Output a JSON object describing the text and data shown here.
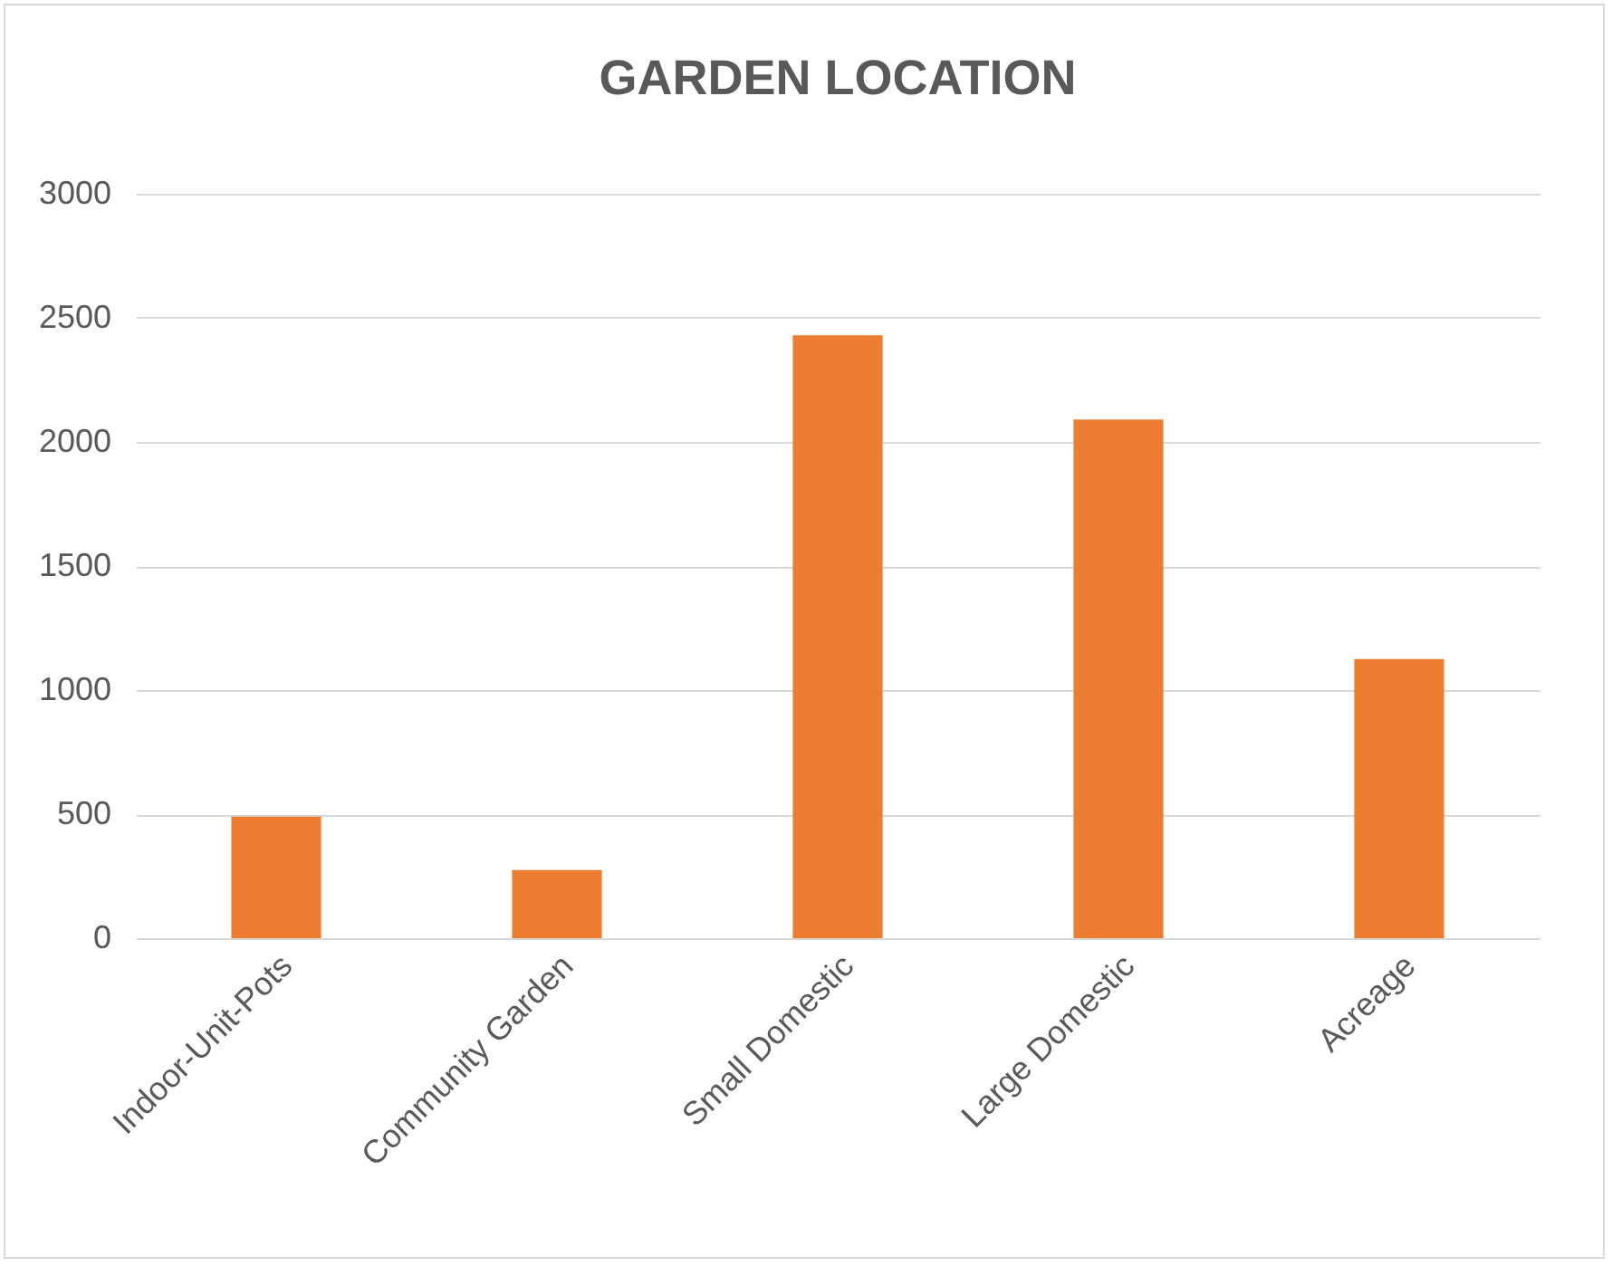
{
  "chart_data": {
    "type": "bar",
    "title": "GARDEN LOCATION",
    "categories": [
      "Indoor-Unit-Pots",
      "Community Garden",
      "Small Domestic",
      "Large Domestic",
      "Acreage"
    ],
    "values": [
      490,
      275,
      2430,
      2090,
      1125
    ],
    "color": "#ed7d31",
    "ylim": [
      0,
      3000
    ],
    "yticks": [
      0,
      500,
      1000,
      1500,
      2000,
      2500,
      3000
    ],
    "grid": "y"
  }
}
